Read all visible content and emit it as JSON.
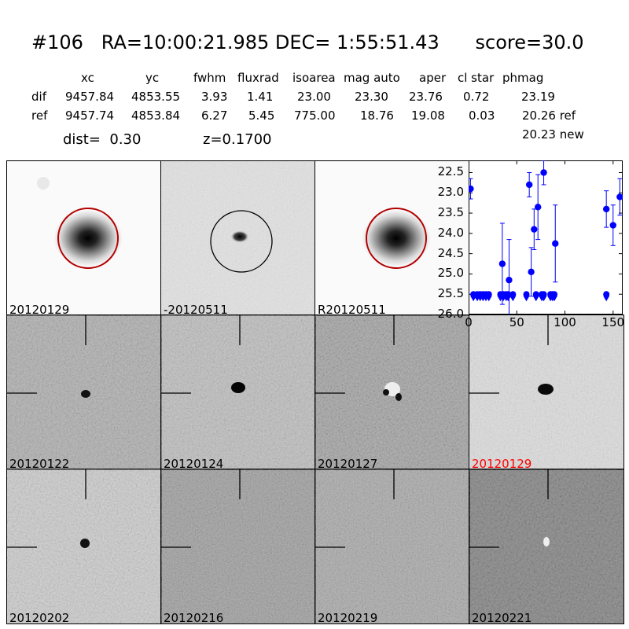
{
  "header": {
    "title": "#106   RA=10:00:21.985 DEC= 1:55:51.43      score=30.0",
    "columns": [
      "xc",
      "yc",
      "fwhm",
      "fluxrad",
      "isoarea",
      "mag auto",
      "aper",
      "cl star",
      "phmag"
    ],
    "rows": [
      {
        "label": "dif",
        "values": [
          "9457.84",
          "4853.55",
          "3.93",
          "1.41",
          "23.00",
          "23.30",
          "23.76",
          "0.72",
          "23.19"
        ]
      },
      {
        "label": "ref",
        "values": [
          "9457.74",
          "4853.84",
          "6.27",
          "5.45",
          "775.00",
          "18.76",
          "19.08",
          "0.03",
          "20.26 ref"
        ]
      }
    ],
    "extra_phmag": "20.23 new",
    "dist": "dist=  0.30",
    "z": "z=0.1700"
  },
  "stamps": {
    "top": [
      "20120129",
      "-20120511",
      "R20120511"
    ],
    "row2": [
      "20120122",
      "20120124",
      "20120127",
      "20120129"
    ],
    "row3": [
      "20120202",
      "20120216",
      "20120219",
      "20120221"
    ],
    "highlight_color": "#ff0000"
  },
  "chart_data": {
    "type": "scatter",
    "title": "",
    "xlabel": "",
    "ylabel": "",
    "xlim": [
      0,
      160
    ],
    "ylim": [
      26.0,
      22.2
    ],
    "xticks": [
      "0",
      "50",
      "100",
      "150"
    ],
    "yticks": [
      "22.5",
      "23.0",
      "23.5",
      "24.0",
      "24.5",
      "25.0",
      "25.5",
      "26.0"
    ],
    "marker_color": "#0000ff",
    "detections": [
      {
        "x": 2,
        "y": 22.9,
        "err": 0.25
      },
      {
        "x": 35,
        "y": 24.75,
        "err": 1.0
      },
      {
        "x": 42,
        "y": 25.15,
        "err": 1.0
      },
      {
        "x": 63,
        "y": 22.8,
        "err": 0.3
      },
      {
        "x": 65,
        "y": 24.95,
        "err": 0.6
      },
      {
        "x": 68,
        "y": 23.9,
        "err": 0.5
      },
      {
        "x": 72,
        "y": 23.35,
        "err": 0.8
      },
      {
        "x": 78,
        "y": 22.5,
        "err": 0.3
      },
      {
        "x": 90,
        "y": 24.25,
        "err": 0.95
      },
      {
        "x": 143,
        "y": 23.4,
        "err": 0.45
      },
      {
        "x": 150,
        "y": 23.8,
        "err": 0.5
      },
      {
        "x": 157,
        "y": 23.1,
        "err": 0.45
      }
    ],
    "limits": [
      {
        "x": 5,
        "y": 25.5
      },
      {
        "x": 9,
        "y": 25.5
      },
      {
        "x": 12,
        "y": 25.5
      },
      {
        "x": 15,
        "y": 25.5
      },
      {
        "x": 18,
        "y": 25.5
      },
      {
        "x": 21,
        "y": 25.5
      },
      {
        "x": 33,
        "y": 25.5
      },
      {
        "x": 36,
        "y": 25.5
      },
      {
        "x": 39,
        "y": 25.5
      },
      {
        "x": 41,
        "y": 25.5
      },
      {
        "x": 46,
        "y": 25.5
      },
      {
        "x": 60,
        "y": 25.5
      },
      {
        "x": 70,
        "y": 25.5
      },
      {
        "x": 76,
        "y": 25.5
      },
      {
        "x": 78,
        "y": 25.5
      },
      {
        "x": 85,
        "y": 25.5
      },
      {
        "x": 87,
        "y": 25.5
      },
      {
        "x": 89,
        "y": 25.5
      },
      {
        "x": 143,
        "y": 25.5
      }
    ]
  }
}
